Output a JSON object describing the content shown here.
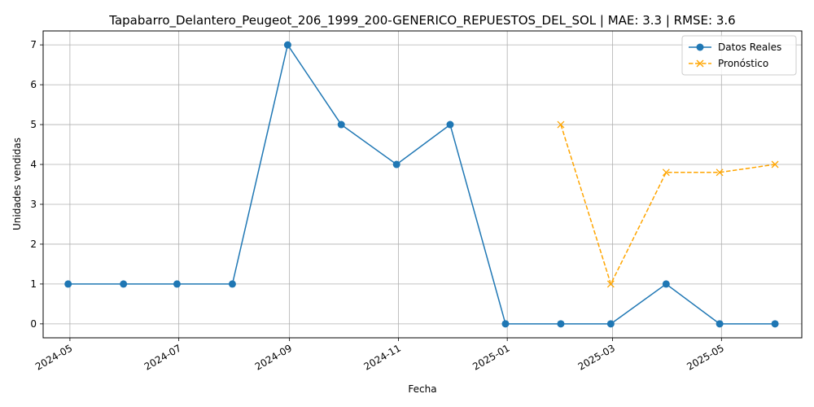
{
  "chart_data": {
    "type": "line",
    "title": "Tapabarro_Delantero_Peugeot_206_1999_200-GENERICO_REPUESTOS_DEL_SOL | MAE: 3.3 | RMSE: 3.6",
    "xlabel": "Fecha",
    "ylabel": "Unidades vendidas",
    "x_ticks": [
      "2024-05",
      "2024-07",
      "2024-09",
      "2024-11",
      "2025-01",
      "2025-03",
      "2025-05"
    ],
    "y_ticks": [
      0,
      1,
      2,
      3,
      4,
      5,
      6,
      7
    ],
    "xlim": [
      "2024-04-16",
      "2025-06-15"
    ],
    "ylim": [
      -0.35,
      7.35
    ],
    "grid": true,
    "legend_position": "top-right",
    "series": [
      {
        "name": "Datos Reales",
        "color": "#1f77b4",
        "style": "solid",
        "marker": "circle",
        "x": [
          "2024-04-30",
          "2024-05-31",
          "2024-06-30",
          "2024-07-31",
          "2024-08-31",
          "2024-09-30",
          "2024-10-31",
          "2024-11-30",
          "2024-12-31",
          "2025-01-31",
          "2025-02-28",
          "2025-03-31",
          "2025-04-30",
          "2025-05-31"
        ],
        "values": [
          1,
          1,
          1,
          1,
          7,
          5,
          4,
          5,
          0,
          0,
          0,
          1,
          0,
          0
        ]
      },
      {
        "name": "Pronóstico",
        "color": "#ffa500",
        "style": "dashed",
        "marker": "x",
        "x": [
          "2025-01-31",
          "2025-02-28",
          "2025-03-31",
          "2025-04-30",
          "2025-05-31"
        ],
        "values": [
          5,
          1,
          3.8,
          3.8,
          4
        ]
      }
    ]
  }
}
